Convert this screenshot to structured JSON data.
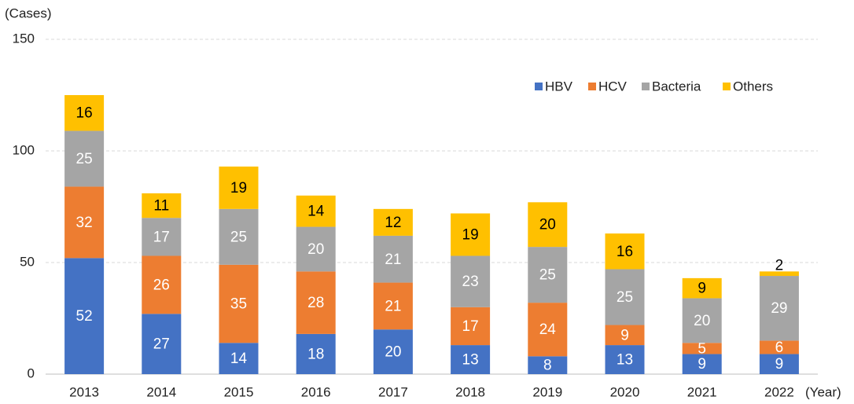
{
  "chart_data": {
    "type": "stacked_bar",
    "y_label": "(Cases)",
    "x_label": "(Year)",
    "categories": [
      "2013",
      "2014",
      "2015",
      "2016",
      "2017",
      "2018",
      "2019",
      "2020",
      "2021",
      "2022"
    ],
    "series": [
      {
        "name": "HBV",
        "color": "#4472c4",
        "label_color": "#ffffff",
        "values": [
          52,
          27,
          14,
          18,
          20,
          13,
          8,
          13,
          9,
          9
        ]
      },
      {
        "name": "HCV",
        "color": "#ed7d31",
        "label_color": "#ffffff",
        "values": [
          32,
          26,
          35,
          28,
          21,
          17,
          24,
          9,
          5,
          6
        ]
      },
      {
        "name": "Bacteria",
        "color": "#a5a5a5",
        "label_color": "#ffffff",
        "values": [
          25,
          17,
          25,
          20,
          21,
          23,
          25,
          25,
          20,
          29
        ]
      },
      {
        "name": "Others",
        "color": "#ffc000",
        "label_color": "#000000",
        "values": [
          16,
          11,
          19,
          14,
          12,
          19,
          20,
          16,
          9,
          2
        ]
      }
    ],
    "ylim": [
      0,
      150
    ],
    "yticks": [
      0,
      50,
      100,
      150
    ],
    "grid": true,
    "legend": "top-right"
  }
}
